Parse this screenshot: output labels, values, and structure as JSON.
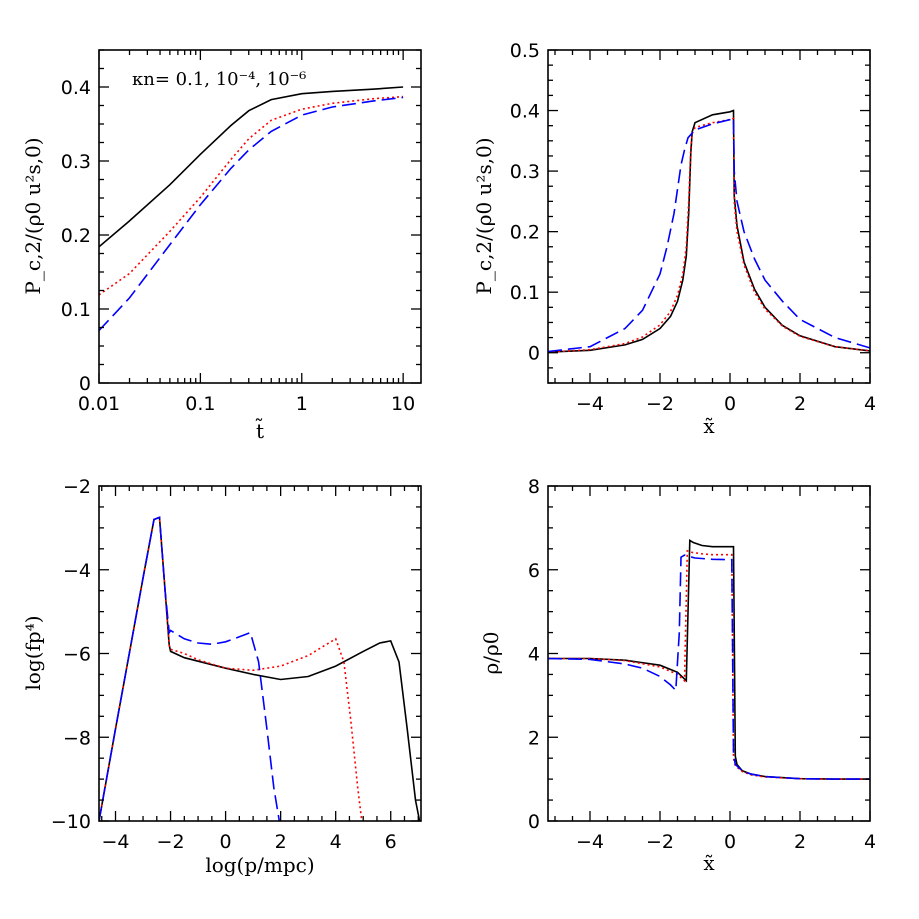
{
  "chart_data": [
    {
      "type": "line",
      "xscale": "log",
      "xlabel": "t̃",
      "ylabel": "P_c,2/(ρ0 u²s,0)",
      "xlim": [
        0.01,
        15
      ],
      "ylim": [
        0,
        0.45
      ],
      "xticks": [
        0.01,
        0.1,
        1,
        10
      ],
      "xtick_labels": [
        "0.01",
        "0.1",
        "1",
        "10"
      ],
      "yticks": [
        0,
        0.1,
        0.2,
        0.3,
        0.4
      ],
      "ytick_labels": [
        "0",
        "0.1",
        "0.2",
        "0.3",
        "0.4"
      ],
      "annotation": "κn= 0.1, 10⁻⁴, 10⁻⁶",
      "series": [
        {
          "color": "#000000",
          "dash": "",
          "x": [
            0.01,
            0.02,
            0.05,
            0.1,
            0.2,
            0.3,
            0.5,
            1,
            2,
            5,
            10
          ],
          "y": [
            0.184,
            0.219,
            0.268,
            0.309,
            0.348,
            0.368,
            0.383,
            0.391,
            0.394,
            0.397,
            0.4
          ]
        },
        {
          "color": "#ff0000",
          "dash": "2,3",
          "x": [
            0.01,
            0.02,
            0.05,
            0.1,
            0.2,
            0.3,
            0.5,
            1,
            2,
            5,
            10
          ],
          "y": [
            0.119,
            0.148,
            0.205,
            0.251,
            0.302,
            0.33,
            0.355,
            0.37,
            0.378,
            0.384,
            0.387
          ]
        },
        {
          "color": "#0000ff",
          "dash": "14,6",
          "x": [
            0.01,
            0.02,
            0.05,
            0.1,
            0.2,
            0.3,
            0.5,
            1,
            2,
            5,
            10
          ],
          "y": [
            0.071,
            0.115,
            0.187,
            0.241,
            0.29,
            0.315,
            0.34,
            0.362,
            0.373,
            0.381,
            0.386
          ]
        }
      ]
    },
    {
      "type": "line",
      "xlabel": "x̃",
      "ylabel": "P_c,2/(ρ0 u²s,0)",
      "xlim": [
        -5.2,
        4
      ],
      "ylim": [
        -0.05,
        0.5
      ],
      "xticks": [
        -4,
        -2,
        0,
        2,
        4
      ],
      "xtick_labels": [
        "−4",
        "−2",
        "0",
        "2",
        "4"
      ],
      "yticks": [
        0,
        0.1,
        0.2,
        0.3,
        0.4,
        0.5
      ],
      "ytick_labels": [
        "0",
        "0.1",
        "0.2",
        "0.3",
        "0.4",
        "0.5"
      ],
      "series": [
        {
          "color": "#000000",
          "dash": "",
          "x": [
            -5.2,
            -4,
            -3,
            -2.5,
            -2,
            -1.7,
            -1.5,
            -1.35,
            -1.25,
            -1.18,
            -1.12,
            -1.08,
            -1.0,
            -0.5,
            0,
            0.1,
            0.12,
            0.2,
            0.4,
            0.7,
            1,
            1.5,
            2,
            3,
            4
          ],
          "y": [
            0.001,
            0.004,
            0.013,
            0.022,
            0.04,
            0.06,
            0.085,
            0.12,
            0.16,
            0.23,
            0.33,
            0.365,
            0.38,
            0.393,
            0.398,
            0.4,
            0.26,
            0.21,
            0.15,
            0.105,
            0.075,
            0.045,
            0.028,
            0.01,
            0.003
          ]
        },
        {
          "color": "#ff0000",
          "dash": "2,3",
          "x": [
            -5.2,
            -4,
            -3,
            -2.5,
            -2,
            -1.7,
            -1.5,
            -1.35,
            -1.25,
            -1.18,
            -1.12,
            -1.08,
            -1.0,
            -0.5,
            0,
            0.1,
            0.12,
            0.2,
            0.4,
            0.7,
            1,
            1.5,
            2,
            3,
            4
          ],
          "y": [
            0.001,
            0.005,
            0.015,
            0.026,
            0.046,
            0.068,
            0.095,
            0.13,
            0.175,
            0.25,
            0.34,
            0.362,
            0.372,
            0.38,
            0.385,
            0.387,
            0.25,
            0.2,
            0.145,
            0.1,
            0.072,
            0.044,
            0.027,
            0.01,
            0.003
          ]
        },
        {
          "color": "#0000ff",
          "dash": "14,6",
          "x": [
            -5.2,
            -4,
            -3,
            -2.5,
            -2,
            -1.8,
            -1.6,
            -1.5,
            -1.4,
            -1.3,
            -1.2,
            -1.0,
            -0.5,
            0,
            0.1,
            0.12,
            0.2,
            0.4,
            0.7,
            1,
            1.5,
            2,
            3,
            4
          ],
          "y": [
            0.002,
            0.01,
            0.04,
            0.07,
            0.13,
            0.175,
            0.23,
            0.27,
            0.31,
            0.335,
            0.355,
            0.368,
            0.378,
            0.385,
            0.388,
            0.3,
            0.25,
            0.2,
            0.155,
            0.12,
            0.085,
            0.055,
            0.025,
            0.008
          ]
        }
      ]
    },
    {
      "type": "line",
      "xlabel": "log(p/mpc)",
      "ylabel": "log(fp⁴)",
      "xlim": [
        -4.6,
        7.1
      ],
      "ylim": [
        -10,
        -2
      ],
      "xticks": [
        -4,
        -2,
        0,
        2,
        4,
        6
      ],
      "xtick_labels": [
        "−4",
        "−2",
        "0",
        "2",
        "4",
        "6"
      ],
      "yticks": [
        -10,
        -8,
        -6,
        -4,
        -2
      ],
      "ytick_labels": [
        "−10",
        "−8",
        "−6",
        "−4",
        "−2"
      ],
      "series": [
        {
          "color": "#000000",
          "dash": "",
          "x": [
            -4.6,
            -4,
            -3.5,
            -3,
            -2.6,
            -2.4,
            -2.2,
            -2.05,
            -2.0,
            -1.5,
            0,
            1,
            2,
            3,
            4,
            5,
            5.6,
            6.0,
            6.3,
            6.6,
            6.9,
            7.05
          ],
          "y": [
            -10,
            -7.8,
            -6.0,
            -4.2,
            -2.8,
            -2.75,
            -4.5,
            -5.8,
            -5.95,
            -6.1,
            -6.35,
            -6.5,
            -6.62,
            -6.55,
            -6.3,
            -5.95,
            -5.75,
            -5.7,
            -6.2,
            -7.8,
            -9.5,
            -10
          ]
        },
        {
          "color": "#ff0000",
          "dash": "2,3",
          "x": [
            -4.6,
            -4,
            -3.5,
            -3,
            -2.6,
            -2.4,
            -2.2,
            -2.05,
            -2.0,
            -1.5,
            -1,
            0,
            1,
            2,
            3,
            3.5,
            4.0,
            4.3,
            4.55,
            4.8,
            4.95
          ],
          "y": [
            -10,
            -7.8,
            -6.0,
            -4.2,
            -2.8,
            -2.75,
            -4.5,
            -5.8,
            -5.9,
            -6.0,
            -6.15,
            -6.35,
            -6.4,
            -6.3,
            -6.05,
            -5.85,
            -5.65,
            -6.2,
            -7.6,
            -9.2,
            -10
          ]
        },
        {
          "color": "#0000ff",
          "dash": "14,6",
          "x": [
            -4.6,
            -4,
            -3.5,
            -3,
            -2.6,
            -2.4,
            -2.2,
            -2.05,
            -2.0,
            -1.5,
            -1,
            -0.5,
            0,
            0.5,
            0.9,
            1.2,
            1.5,
            1.75,
            1.95
          ],
          "y": [
            -10,
            -7.8,
            -6.0,
            -4.2,
            -2.8,
            -2.75,
            -4.5,
            -5.5,
            -5.45,
            -5.65,
            -5.75,
            -5.78,
            -5.72,
            -5.6,
            -5.5,
            -6.2,
            -7.8,
            -9.2,
            -10
          ]
        }
      ]
    },
    {
      "type": "line",
      "xlabel": "x̃",
      "ylabel": "ρ/ρ0",
      "xlim": [
        -5.2,
        4
      ],
      "ylim": [
        0,
        8
      ],
      "xticks": [
        -4,
        -2,
        0,
        2,
        4
      ],
      "xtick_labels": [
        "−4",
        "−2",
        "0",
        "2",
        "4"
      ],
      "yticks": [
        0,
        2,
        4,
        6,
        8
      ],
      "ytick_labels": [
        "0",
        "2",
        "4",
        "6",
        "8"
      ],
      "series": [
        {
          "color": "#000000",
          "dash": "",
          "x": [
            -5.2,
            -4,
            -3,
            -2,
            -1.5,
            -1.25,
            -1.15,
            -1.05,
            -0.8,
            -0.5,
            0,
            0.1,
            0.15,
            0.2,
            0.35,
            0.6,
            1,
            2,
            3,
            4
          ],
          "y": [
            3.88,
            3.88,
            3.84,
            3.72,
            3.55,
            3.35,
            6.7,
            6.65,
            6.58,
            6.55,
            6.55,
            6.55,
            1.55,
            1.35,
            1.2,
            1.12,
            1.06,
            1.01,
            1.0,
            1.0
          ]
        },
        {
          "color": "#ff0000",
          "dash": "2,3",
          "x": [
            -5.2,
            -4,
            -3,
            -2,
            -1.5,
            -1.3,
            -1.22,
            -1.12,
            -0.8,
            -0.5,
            0,
            0.05,
            0.1,
            0.15,
            0.35,
            0.6,
            1,
            2,
            3,
            4
          ],
          "y": [
            3.88,
            3.88,
            3.83,
            3.68,
            3.5,
            3.35,
            6.45,
            6.42,
            6.38,
            6.36,
            6.36,
            6.36,
            1.5,
            1.32,
            1.18,
            1.1,
            1.05,
            1.01,
            1.0,
            1.0
          ]
        },
        {
          "color": "#0000ff",
          "dash": "14,6",
          "x": [
            -5.2,
            -4,
            -3,
            -2.5,
            -2,
            -1.7,
            -1.55,
            -1.45,
            -1.4,
            -1.3,
            -1.0,
            -0.5,
            0,
            0.05,
            0.1,
            0.15,
            0.35,
            0.6,
            1,
            2,
            3,
            4
          ],
          "y": [
            3.88,
            3.86,
            3.75,
            3.65,
            3.45,
            3.25,
            3.12,
            4.5,
            6.3,
            6.35,
            6.28,
            6.25,
            6.24,
            6.24,
            1.6,
            1.35,
            1.2,
            1.12,
            1.06,
            1.01,
            1.0,
            1.0
          ]
        }
      ]
    }
  ]
}
